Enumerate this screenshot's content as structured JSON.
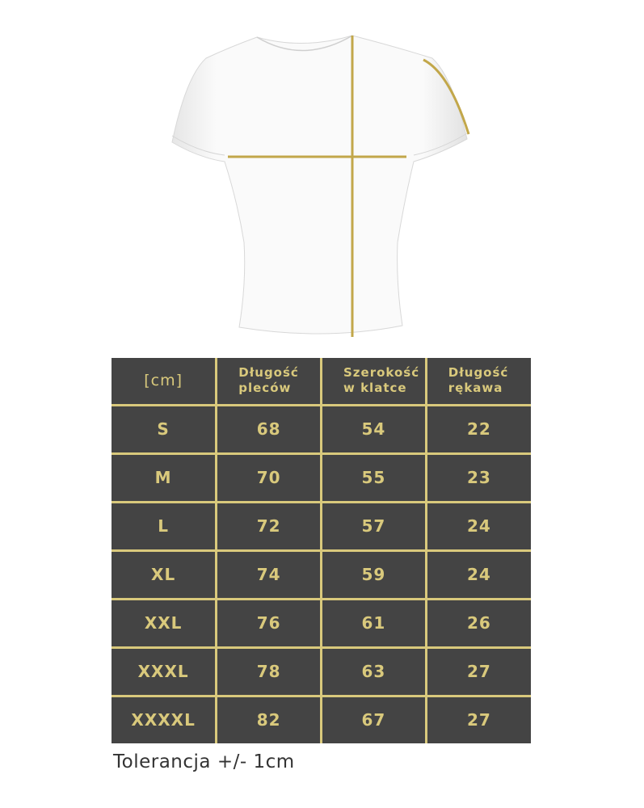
{
  "colors": {
    "accent": "#c9a94a",
    "table_bg": "#444444",
    "table_text": "#d9c97c"
  },
  "table": {
    "unit": "[cm]",
    "headers": [
      [
        "Długość",
        "pleców"
      ],
      [
        "Szerokość",
        "w klatce"
      ],
      [
        "Długość",
        "rękawa"
      ]
    ],
    "rows": [
      {
        "size": "S",
        "values": [
          "68",
          "54",
          "22"
        ]
      },
      {
        "size": "M",
        "values": [
          "70",
          "55",
          "23"
        ]
      },
      {
        "size": "L",
        "values": [
          "72",
          "57",
          "24"
        ]
      },
      {
        "size": "XL",
        "values": [
          "74",
          "59",
          "24"
        ]
      },
      {
        "size": "XXL",
        "values": [
          "76",
          "61",
          "26"
        ]
      },
      {
        "size": "XXXL",
        "values": [
          "78",
          "63",
          "27"
        ]
      },
      {
        "size": "XXXXL",
        "values": [
          "82",
          "67",
          "27"
        ]
      }
    ]
  },
  "tolerance": "Tolerancja +/- 1cm"
}
